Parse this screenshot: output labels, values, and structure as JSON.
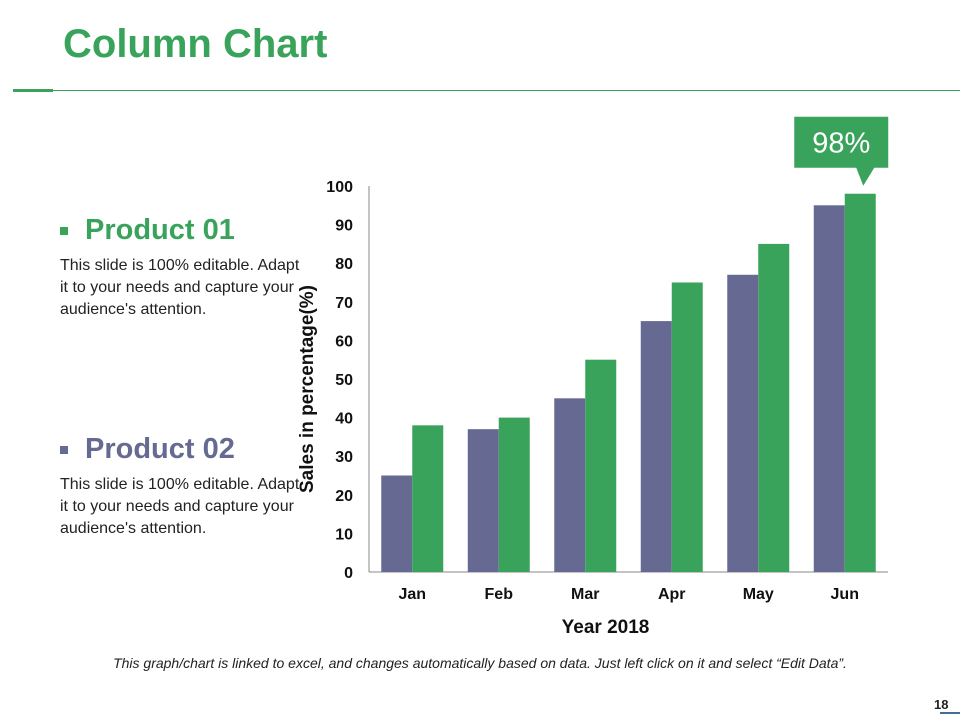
{
  "slide": {
    "title": "Column Chart",
    "page_number": "18",
    "footnote": "This graph/chart is linked to excel, and changes automatically based on data. Just left click on it and select “Edit Data”."
  },
  "products": [
    {
      "name": "Product 01",
      "description": "This slide is 100% editable. Adapt it to your needs and capture your audience's attention.",
      "color": "#3aa35b"
    },
    {
      "name": "Product 02",
      "description": "This slide is 100% editable. Adapt it to your needs and capture your audience's attention.",
      "color": "#666a92"
    }
  ],
  "colors": {
    "accent_green": "#3aa35b",
    "series_purple": "#666a92",
    "series_green": "#3aa35b"
  },
  "chart_data": {
    "type": "bar",
    "title": "",
    "xlabel": "Year 2018",
    "ylabel": "Sales in percentage(%)",
    "categories": [
      "Jan",
      "Feb",
      "Mar",
      "Apr",
      "May",
      "Jun"
    ],
    "series": [
      {
        "values": [
          25,
          37,
          45,
          65,
          77,
          95
        ],
        "color": "#666a92"
      },
      {
        "values": [
          38,
          40,
          55,
          75,
          85,
          98
        ],
        "color": "#3aa35b"
      }
    ],
    "ylim": [
      0,
      100
    ],
    "yticks": [
      0,
      10,
      20,
      30,
      40,
      50,
      60,
      70,
      80,
      90,
      100
    ],
    "grid": false,
    "legend": "none",
    "callout": {
      "text": "98%",
      "category": "Jun",
      "series_index": 1
    }
  }
}
